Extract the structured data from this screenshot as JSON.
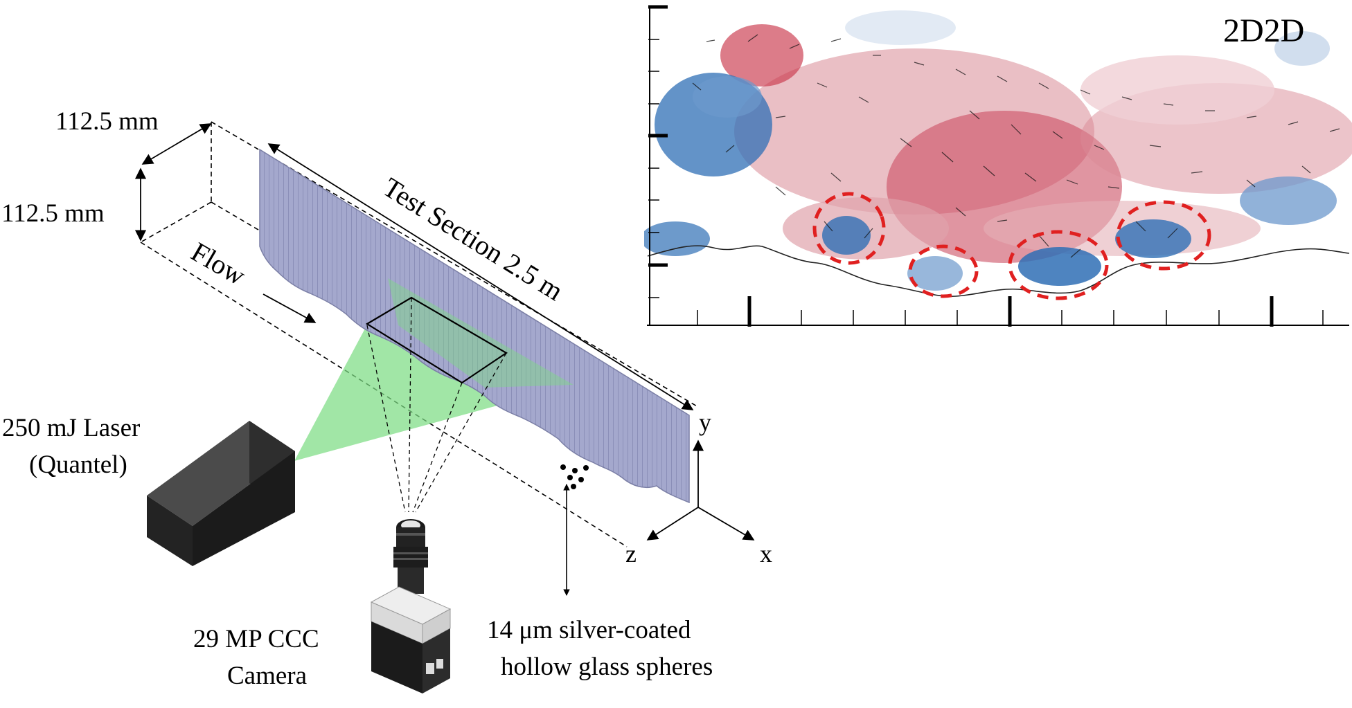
{
  "labels": {
    "width_dim": "112.5 mm",
    "height_dim": "112.5 mm",
    "flow": "Flow",
    "test_section": "Test Section 2.5 m",
    "laser_line1": "250 mJ Laser",
    "laser_line2": "(Quantel)",
    "camera_line1": "29 MP CCC",
    "camera_line2": "Camera",
    "spheres_line1": "14 μm silver-coated",
    "spheres_line2": "hollow glass spheres",
    "axis_x": "x",
    "axis_y": "y",
    "axis_z": "z",
    "inset_title": "2D2D"
  },
  "colors": {
    "laser_sheet": "#7ddc83",
    "wall": "#9ea2c8",
    "laser_box": "#1f1f1f",
    "vortex_circle": "#e02020",
    "velocity_positive": "#c9354a",
    "velocity_negative": "#2f6fb5"
  }
}
